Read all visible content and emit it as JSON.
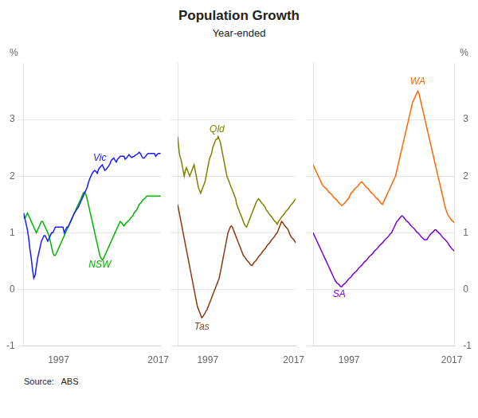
{
  "title": "Population Growth",
  "subtitle": "Year-ended",
  "source": "Source:   ABS",
  "chart_data": [
    {
      "type": "line",
      "ylabel": "%",
      "x": [
        1990,
        1990.2546,
        1990.5093,
        1990.7639,
        1991.0185,
        1991.2731,
        1991.5278,
        1991.7824,
        1992.037,
        1992.2917,
        1992.5463,
        1992.8009,
        1993.0556,
        1993.3102,
        1993.5648,
        1993.8194,
        1994.0741,
        1994.3287,
        1994.5833,
        1994.838,
        1995.0926,
        1995.3472,
        1995.6019,
        1995.8565,
        1996.1111,
        1996.3657,
        1996.6204,
        1996.875,
        1997.1296,
        1997.3843,
        1997.6389,
        1997.8935,
        1998.1481,
        1998.4028,
        1998.6574,
        1998.912,
        1999.1667,
        1999.4213,
        1999.6759,
        1999.9306,
        2000.1852,
        2000.4398,
        2000.6944,
        2000.9491,
        2001.2037,
        2001.4583,
        2001.713,
        2001.9676,
        2002.2222,
        2002.4769,
        2002.7315,
        2002.9861,
        2003.2407,
        2003.4954,
        2003.75,
        2004.0046,
        2004.2593,
        2004.5139,
        2004.7685,
        2005.0231,
        2005.2778,
        2005.5324,
        2005.787,
        2006.0417,
        2006.2963,
        2006.5509,
        2006.8056,
        2007.0602,
        2007.3148,
        2007.5694,
        2007.8241,
        2008.0787,
        2008.3333,
        2008.588,
        2008.8426,
        2009.0972,
        2009.3519,
        2009.6065,
        2009.8611,
        2010.1157,
        2010.3704,
        2010.625,
        2010.8796,
        2011.1343,
        2011.3889,
        2011.6435,
        2011.8981,
        2012.1528,
        2012.4074,
        2012.662,
        2012.9167,
        2013.1713,
        2013.4259,
        2013.6806,
        2013.9352,
        2014.1898,
        2014.4444,
        2014.6991,
        2014.9537,
        2015.2083,
        2015.463,
        2015.7176,
        2015.9722,
        2016.2269,
        2016.4815,
        2016.7361,
        2016.9907,
        2017.2454,
        2017.5
      ],
      "xlim": [
        1990,
        2017.5
      ],
      "xticks": [
        1997,
        2017
      ],
      "ylim": [
        -1,
        4
      ],
      "yticks": [
        -1,
        0,
        1,
        2,
        3
      ],
      "grid": true,
      "series": [
        {
          "name": "Vic",
          "color": "#1a1aff",
          "values": [
            1.35,
            1.25,
            1.15,
            1.05,
            0.9,
            0.7,
            0.55,
            0.35,
            0.2,
            0.25,
            0.4,
            0.55,
            0.65,
            0.75,
            0.85,
            0.9,
            0.95,
            0.95,
            0.9,
            0.85,
            0.9,
            0.95,
            1.0,
            1.0,
            1.05,
            1.1,
            1.1,
            1.1,
            1.1,
            1.1,
            1.1,
            1.1,
            1.0,
            1.05,
            1.1,
            1.1,
            1.15,
            1.2,
            1.25,
            1.3,
            1.35,
            1.38,
            1.42,
            1.45,
            1.5,
            1.55,
            1.6,
            1.65,
            1.7,
            1.75,
            1.8,
            1.88,
            1.95,
            2.0,
            2.05,
            2.08,
            2.1,
            2.08,
            2.05,
            2.12,
            2.15,
            2.18,
            2.2,
            2.15,
            2.1,
            2.12,
            2.15,
            2.18,
            2.22,
            2.28,
            2.3,
            2.32,
            2.28,
            2.25,
            2.3,
            2.32,
            2.35,
            2.35,
            2.35,
            2.35,
            2.3,
            2.32,
            2.35,
            2.38,
            2.35,
            2.33,
            2.34,
            2.35,
            2.37,
            2.38,
            2.4,
            2.42,
            2.4,
            2.35,
            2.32,
            2.32,
            2.35,
            2.38,
            2.4,
            2.4,
            2.4,
            2.4,
            2.4,
            2.4,
            2.35,
            2.38,
            2.4,
            2.4,
            2.4
          ]
        },
        {
          "name": "NSW",
          "color": "#00b300",
          "values": [
            1.3,
            1.25,
            1.3,
            1.35,
            1.3,
            1.25,
            1.2,
            1.15,
            1.1,
            1.05,
            1.0,
            1.05,
            1.1,
            1.15,
            1.2,
            1.2,
            1.15,
            1.1,
            1.05,
            1.0,
            0.95,
            0.85,
            0.75,
            0.65,
            0.6,
            0.6,
            0.65,
            0.7,
            0.75,
            0.8,
            0.85,
            0.9,
            0.95,
            1.0,
            1.05,
            1.1,
            1.15,
            1.2,
            1.25,
            1.3,
            1.35,
            1.4,
            1.45,
            1.5,
            1.55,
            1.6,
            1.65,
            1.7,
            1.72,
            1.68,
            1.6,
            1.5,
            1.4,
            1.3,
            1.2,
            1.1,
            1.0,
            0.9,
            0.8,
            0.7,
            0.6,
            0.55,
            0.52,
            0.55,
            0.6,
            0.65,
            0.7,
            0.75,
            0.8,
            0.85,
            0.9,
            0.95,
            1.0,
            1.05,
            1.1,
            1.15,
            1.2,
            1.18,
            1.15,
            1.12,
            1.15,
            1.18,
            1.2,
            1.22,
            1.25,
            1.28,
            1.3,
            1.35,
            1.38,
            1.4,
            1.45,
            1.5,
            1.52,
            1.55,
            1.58,
            1.6,
            1.62,
            1.65,
            1.65,
            1.65,
            1.65,
            1.65,
            1.65,
            1.65,
            1.65,
            1.65,
            1.65,
            1.65,
            1.65
          ]
        }
      ]
    },
    {
      "type": "line",
      "tick_labels": "x",
      "x": [
        1990,
        1990.2546,
        1990.5093,
        1990.7639,
        1991.0185,
        1991.2731,
        1991.5278,
        1991.7824,
        1992.037,
        1992.2917,
        1992.5463,
        1992.8009,
        1993.0556,
        1993.3102,
        1993.5648,
        1993.8194,
        1994.0741,
        1994.3287,
        1994.5833,
        1994.838,
        1995.0926,
        1995.3472,
        1995.6019,
        1995.8565,
        1996.1111,
        1996.3657,
        1996.6204,
        1996.875,
        1997.1296,
        1997.3843,
        1997.6389,
        1997.8935,
        1998.1481,
        1998.4028,
        1998.6574,
        1998.912,
        1999.1667,
        1999.4213,
        1999.6759,
        1999.9306,
        2000.1852,
        2000.4398,
        2000.6944,
        2000.9491,
        2001.2037,
        2001.4583,
        2001.713,
        2001.9676,
        2002.2222,
        2002.4769,
        2002.7315,
        2002.9861,
        2003.2407,
        2003.4954,
        2003.75,
        2004.0046,
        2004.2593,
        2004.5139,
        2004.7685,
        2005.0231,
        2005.2778,
        2005.5324,
        2005.787,
        2006.0417,
        2006.2963,
        2006.5509,
        2006.8056,
        2007.0602,
        2007.3148,
        2007.5694,
        2007.8241,
        2008.0787,
        2008.3333,
        2008.588,
        2008.8426,
        2009.0972,
        2009.3519,
        2009.6065,
        2009.8611,
        2010.1157,
        2010.3704,
        2010.625,
        2010.8796,
        2011.1343,
        2011.3889,
        2011.6435,
        2011.8981,
        2012.1528,
        2012.4074,
        2012.662,
        2012.9167,
        2013.1713,
        2013.4259,
        2013.6806,
        2013.9352,
        2014.1898,
        2014.4444,
        2014.6991,
        2014.9537,
        2015.2083,
        2015.463,
        2015.7176,
        2015.9722,
        2016.2269,
        2016.4815,
        2016.7361,
        2016.9907,
        2017.2454,
        2017.5
      ],
      "xlim": [
        1990,
        2017.5
      ],
      "xticks": [
        1997,
        2017
      ],
      "ylim": [
        -1,
        4
      ],
      "yticks": [
        -1,
        0,
        1,
        2,
        3
      ],
      "grid": true,
      "series": [
        {
          "name": "Qld",
          "color": "#808000",
          "values": [
            2.7,
            2.5,
            2.35,
            2.3,
            2.2,
            2.1,
            2.0,
            2.1,
            2.15,
            2.1,
            2.05,
            2.0,
            2.05,
            2.1,
            2.15,
            2.2,
            2.1,
            2.0,
            1.9,
            1.8,
            1.75,
            1.7,
            1.75,
            1.8,
            1.85,
            1.9,
            2.0,
            2.1,
            2.2,
            2.3,
            2.35,
            2.4,
            2.5,
            2.55,
            2.6,
            2.65,
            2.65,
            2.7,
            2.65,
            2.6,
            2.5,
            2.4,
            2.3,
            2.2,
            2.1,
            2.0,
            1.95,
            1.9,
            1.85,
            1.8,
            1.75,
            1.7,
            1.65,
            1.6,
            1.5,
            1.45,
            1.4,
            1.35,
            1.3,
            1.25,
            1.2,
            1.15,
            1.12,
            1.1,
            1.15,
            1.2,
            1.25,
            1.3,
            1.35,
            1.4,
            1.45,
            1.5,
            1.55,
            1.58,
            1.6,
            1.58,
            1.55,
            1.52,
            1.5,
            1.48,
            1.45,
            1.4,
            1.38,
            1.35,
            1.32,
            1.3,
            1.28,
            1.25,
            1.22,
            1.2,
            1.18,
            1.15,
            1.2,
            1.22,
            1.25,
            1.28,
            1.3,
            1.32,
            1.35,
            1.38,
            1.4,
            1.42,
            1.45,
            1.48,
            1.5,
            1.52,
            1.55,
            1.58,
            1.6
          ]
        },
        {
          "name": "Tas",
          "color": "#8B3A0F",
          "values": [
            1.5,
            1.4,
            1.3,
            1.2,
            1.1,
            1.0,
            0.9,
            0.8,
            0.7,
            0.6,
            0.5,
            0.4,
            0.3,
            0.2,
            0.1,
            0.0,
            -0.1,
            -0.2,
            -0.3,
            -0.35,
            -0.4,
            -0.45,
            -0.5,
            -0.48,
            -0.45,
            -0.42,
            -0.38,
            -0.35,
            -0.3,
            -0.25,
            -0.2,
            -0.15,
            -0.1,
            -0.05,
            0.0,
            0.05,
            0.1,
            0.15,
            0.2,
            0.3,
            0.4,
            0.5,
            0.6,
            0.7,
            0.8,
            0.9,
            1.0,
            1.05,
            1.1,
            1.12,
            1.1,
            1.05,
            1.0,
            0.95,
            0.9,
            0.85,
            0.8,
            0.75,
            0.7,
            0.65,
            0.6,
            0.58,
            0.55,
            0.52,
            0.5,
            0.48,
            0.45,
            0.43,
            0.42,
            0.45,
            0.48,
            0.5,
            0.52,
            0.55,
            0.58,
            0.6,
            0.62,
            0.65,
            0.68,
            0.7,
            0.72,
            0.75,
            0.78,
            0.8,
            0.82,
            0.85,
            0.88,
            0.9,
            0.92,
            0.95,
            0.98,
            1.0,
            1.05,
            1.1,
            1.15,
            1.2,
            1.18,
            1.15,
            1.12,
            1.1,
            1.08,
            1.05,
            1.0,
            0.95,
            0.92,
            0.9,
            0.88,
            0.85,
            0.82
          ]
        }
      ]
    },
    {
      "type": "line",
      "ylabel": "%",
      "x": [
        1990,
        1990.2546,
        1990.5093,
        1990.7639,
        1991.0185,
        1991.2731,
        1991.5278,
        1991.7824,
        1992.037,
        1992.2917,
        1992.5463,
        1992.8009,
        1993.0556,
        1993.3102,
        1993.5648,
        1993.8194,
        1994.0741,
        1994.3287,
        1994.5833,
        1994.838,
        1995.0926,
        1995.3472,
        1995.6019,
        1995.8565,
        1996.1111,
        1996.3657,
        1996.6204,
        1996.875,
        1997.1296,
        1997.3843,
        1997.6389,
        1997.8935,
        1998.1481,
        1998.4028,
        1998.6574,
        1998.912,
        1999.1667,
        1999.4213,
        1999.6759,
        1999.9306,
        2000.1852,
        2000.4398,
        2000.6944,
        2000.9491,
        2001.2037,
        2001.4583,
        2001.713,
        2001.9676,
        2002.2222,
        2002.4769,
        2002.7315,
        2002.9861,
        2003.2407,
        2003.4954,
        2003.75,
        2004.0046,
        2004.2593,
        2004.5139,
        2004.7685,
        2005.0231,
        2005.2778,
        2005.5324,
        2005.787,
        2006.0417,
        2006.2963,
        2006.5509,
        2006.8056,
        2007.0602,
        2007.3148,
        2007.5694,
        2007.8241,
        2008.0787,
        2008.3333,
        2008.588,
        2008.8426,
        2009.0972,
        2009.3519,
        2009.6065,
        2009.8611,
        2010.1157,
        2010.3704,
        2010.625,
        2010.8796,
        2011.1343,
        2011.3889,
        2011.6435,
        2011.8981,
        2012.1528,
        2012.4074,
        2012.662,
        2012.9167,
        2013.1713,
        2013.4259,
        2013.6806,
        2013.9352,
        2014.1898,
        2014.4444,
        2014.6991,
        2014.9537,
        2015.2083,
        2015.463,
        2015.7176,
        2015.9722,
        2016.2269,
        2016.4815,
        2016.7361,
        2016.9907,
        2017.2454,
        2017.5
      ],
      "xlim": [
        1990,
        2017.5
      ],
      "xticks": [
        1997,
        2017
      ],
      "ylim": [
        -1,
        4
      ],
      "yticks": [
        -1,
        0,
        1,
        2,
        3
      ],
      "grid": true,
      "series": [
        {
          "name": "WA",
          "color": "#FF6600",
          "values": [
            2.2,
            2.15,
            2.1,
            2.05,
            2.0,
            1.95,
            1.9,
            1.85,
            1.82,
            1.8,
            1.78,
            1.75,
            1.72,
            1.7,
            1.68,
            1.65,
            1.62,
            1.6,
            1.58,
            1.55,
            1.52,
            1.5,
            1.48,
            1.5,
            1.52,
            1.55,
            1.58,
            1.6,
            1.65,
            1.7,
            1.72,
            1.75,
            1.78,
            1.8,
            1.82,
            1.85,
            1.88,
            1.9,
            1.88,
            1.85,
            1.82,
            1.8,
            1.78,
            1.75,
            1.72,
            1.7,
            1.68,
            1.65,
            1.62,
            1.6,
            1.58,
            1.55,
            1.52,
            1.5,
            1.55,
            1.6,
            1.65,
            1.7,
            1.75,
            1.8,
            1.85,
            1.9,
            1.95,
            2.0,
            2.1,
            2.2,
            2.3,
            2.4,
            2.5,
            2.6,
            2.7,
            2.8,
            2.9,
            3.0,
            3.1,
            3.2,
            3.3,
            3.35,
            3.4,
            3.45,
            3.5,
            3.45,
            3.35,
            3.25,
            3.15,
            3.05,
            2.95,
            2.85,
            2.75,
            2.65,
            2.55,
            2.45,
            2.35,
            2.25,
            2.15,
            2.05,
            1.95,
            1.85,
            1.75,
            1.65,
            1.55,
            1.45,
            1.38,
            1.32,
            1.28,
            1.25,
            1.22,
            1.2,
            1.18
          ]
        },
        {
          "name": "SA",
          "color": "#7B00D4",
          "values": [
            1.0,
            0.95,
            0.9,
            0.85,
            0.8,
            0.75,
            0.7,
            0.65,
            0.6,
            0.55,
            0.5,
            0.45,
            0.4,
            0.35,
            0.3,
            0.25,
            0.2,
            0.15,
            0.12,
            0.1,
            0.08,
            0.05,
            0.05,
            0.08,
            0.1,
            0.12,
            0.15,
            0.18,
            0.2,
            0.22,
            0.25,
            0.28,
            0.3,
            0.32,
            0.35,
            0.38,
            0.4,
            0.42,
            0.45,
            0.48,
            0.5,
            0.52,
            0.55,
            0.58,
            0.6,
            0.62,
            0.65,
            0.68,
            0.7,
            0.72,
            0.75,
            0.78,
            0.8,
            0.82,
            0.85,
            0.88,
            0.9,
            0.92,
            0.95,
            0.98,
            1.0,
            1.05,
            1.1,
            1.15,
            1.2,
            1.22,
            1.25,
            1.28,
            1.3,
            1.28,
            1.25,
            1.22,
            1.2,
            1.18,
            1.15,
            1.12,
            1.1,
            1.08,
            1.05,
            1.02,
            1.0,
            0.98,
            0.95,
            0.92,
            0.9,
            0.88,
            0.88,
            0.88,
            0.92,
            0.95,
            0.98,
            1.0,
            1.02,
            1.05,
            1.05,
            1.02,
            1.0,
            0.98,
            0.95,
            0.92,
            0.9,
            0.88,
            0.85,
            0.82,
            0.78,
            0.75,
            0.72,
            0.7,
            0.68
          ]
        }
      ]
    }
  ]
}
